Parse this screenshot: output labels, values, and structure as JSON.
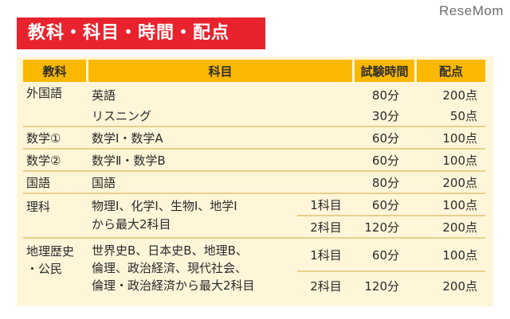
{
  "watermark": "ReseMom",
  "title": "教科・科目・時間・配点",
  "headers": {
    "category": "教科",
    "subject": "科目",
    "time": "試験時間",
    "score": "配点"
  },
  "rows": {
    "foreign": {
      "category": "外国語",
      "english": "英語",
      "english_time": "80分",
      "english_score": "200点",
      "listening": "リスニング",
      "listening_time": "30分",
      "listening_score": "50点"
    },
    "math1": {
      "category": "数学①",
      "subject": "数学Ⅰ・数学A",
      "time": "60分",
      "score": "100点"
    },
    "math2": {
      "category": "数学②",
      "subject": "数学Ⅱ・数学B",
      "time": "60分",
      "score": "100点"
    },
    "japanese": {
      "category": "国語",
      "subject": "国語",
      "time": "80分",
      "score": "200点"
    },
    "science": {
      "category": "理科",
      "subject_line1": "物理Ⅰ、化学Ⅰ、生物Ⅰ、地学Ⅰ",
      "subject_line2": "から最大2科目",
      "opt1": "1科目",
      "time1": "60分",
      "score1": "100点",
      "opt2": "2科目",
      "time2": "120分",
      "score2": "200点"
    },
    "social": {
      "category_line1": "地理歴史",
      "category_line2": "・公民",
      "subject_line1": "世界史B、日本史B、地理B、",
      "subject_line2": "倫理、政治経済、現代社会、",
      "subject_line3": "倫理・政治経済から最大2科目",
      "opt1": "1科目",
      "time1": "60分",
      "score1": "100点",
      "opt2": "2科目",
      "time2": "120分",
      "score2": "200点"
    }
  },
  "colors": {
    "title_bg": "#e8232e",
    "header_bg": "#fbb800",
    "panel_bg": "#fff5d9"
  }
}
